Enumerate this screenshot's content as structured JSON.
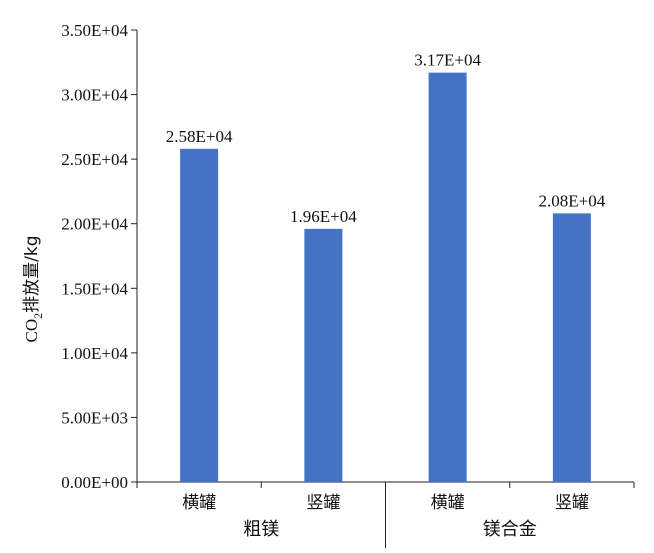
{
  "chart_data": {
    "type": "bar",
    "categories": [
      "横罐",
      "竖罐",
      "横罐",
      "竖罐"
    ],
    "groups": [
      {
        "label": "粗镁",
        "span": [
          0,
          1
        ]
      },
      {
        "label": "镁合金",
        "span": [
          2,
          3
        ]
      }
    ],
    "series": [
      {
        "values": [
          25800,
          19600,
          31700,
          20800
        ],
        "color": "#4472c4"
      }
    ],
    "data_labels": [
      "2.58E+04",
      "1.96E+04",
      "3.17E+04",
      "2.08E+04"
    ],
    "ylim": [
      0,
      35000
    ],
    "yticks": [
      0,
      5000,
      10000,
      15000,
      20000,
      25000,
      30000,
      35000
    ],
    "ytick_labels": [
      "0.00E+00",
      "5.00E+03",
      "1.00E+04",
      "1.50E+04",
      "2.00E+04",
      "2.50E+04",
      "3.00E+04",
      "3.50E+04"
    ],
    "ylabel": {
      "prefix": "CO",
      "subscript": "2",
      "suffix": "排放量/kg"
    },
    "grid": false,
    "legend": "none"
  }
}
